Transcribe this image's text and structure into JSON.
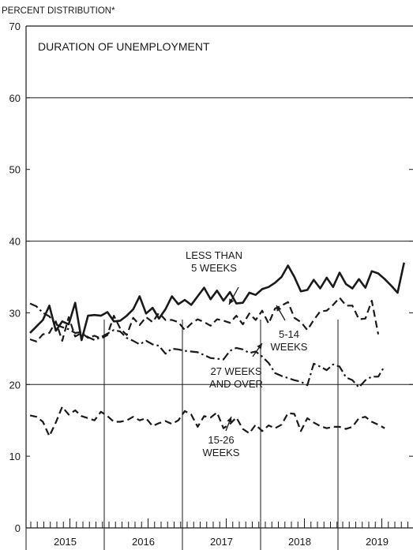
{
  "chart_data": {
    "type": "line",
    "title": "DURATION OF UNEMPLOYMENT",
    "ylabel": "PERCENT DISTRIBUTION*",
    "xlabel": "",
    "ylim": [
      0,
      70
    ],
    "yticks": [
      0,
      10,
      20,
      30,
      40,
      50,
      60,
      70
    ],
    "years": [
      "2015",
      "2016",
      "2017",
      "2018",
      "2019"
    ],
    "months_per_year": 12,
    "grid": true,
    "series": [
      {
        "name": "LESS THAN 5 WEEKS",
        "style": "solid",
        "values": [
          27.2,
          28.1,
          29.0,
          31.0,
          27.5,
          28.8,
          28.4,
          31.4,
          26.2,
          29.6,
          29.7,
          29.6,
          30.1,
          28.8,
          28.9,
          29.6,
          30.5,
          32.3,
          29.9,
          30.7,
          29.2,
          30.5,
          32.3,
          31.2,
          31.8,
          31.1,
          32.3,
          33.5,
          31.9,
          33.1,
          31.7,
          32.9,
          31.3,
          31.4,
          32.8,
          32.5,
          33.3,
          33.6,
          34.2,
          35.0,
          36.6,
          35.0,
          33.0,
          33.2,
          34.6,
          33.4,
          34.9,
          33.6,
          35.6,
          34.0,
          33.4,
          34.7,
          33.5,
          35.8,
          35.5,
          34.7,
          33.8,
          32.8,
          37.0
        ]
      },
      {
        "name": "5-14 WEEKS",
        "style": "dashed",
        "values": [
          26.3,
          26.0,
          27.0,
          27.2,
          28.8,
          26.1,
          29.4,
          26.7,
          27.2,
          26.5,
          26.8,
          26.4,
          26.9,
          29.6,
          27.8,
          26.9,
          29.3,
          28.3,
          29.4,
          28.7,
          30.0,
          29.0,
          29.0,
          28.7,
          27.6,
          28.5,
          29.1,
          28.7,
          28.2,
          29.1,
          28.9,
          28.6,
          29.6,
          28.4,
          29.9,
          29.0,
          30.3,
          28.5,
          30.6,
          31.0,
          31.5,
          29.3,
          28.7,
          27.6,
          29.0,
          30.2,
          30.3,
          31.1,
          32.1,
          31.0,
          31.0,
          29.1,
          29.2,
          31.7,
          27.0
        ]
      },
      {
        "name": "27 WEEKS AND OVER",
        "style": "dashdot",
        "values": [
          31.3,
          30.9,
          30.0,
          29.5,
          28.4,
          28.0,
          27.7,
          27.2,
          27.3,
          26.6,
          26.2,
          26.6,
          27.1,
          27.6,
          27.4,
          26.5,
          26.1,
          25.6,
          26.1,
          25.6,
          25.4,
          24.3,
          25.0,
          24.9,
          24.7,
          24.6,
          24.5,
          24.1,
          23.7,
          23.6,
          23.5,
          24.7,
          25.1,
          24.9,
          24.4,
          24.6,
          23.9,
          23.0,
          21.6,
          21.2,
          20.9,
          20.6,
          20.4,
          19.9,
          22.9,
          22.5,
          22.0,
          22.8,
          22.5,
          21.0,
          20.6,
          19.6,
          20.6,
          21.1,
          21.1,
          22.6
        ]
      },
      {
        "name": "15-26 WEEKS",
        "style": "dashed",
        "values": [
          15.7,
          15.5,
          14.8,
          12.8,
          14.7,
          16.9,
          15.8,
          16.4,
          15.6,
          15.3,
          15.0,
          16.2,
          15.6,
          14.8,
          14.8,
          15.0,
          15.5,
          15.0,
          15.3,
          14.2,
          14.6,
          14.9,
          14.5,
          15.0,
          16.3,
          15.8,
          14.1,
          15.6,
          15.4,
          16.1,
          13.9,
          14.5,
          15.4,
          13.8,
          13.2,
          14.4,
          13.5,
          14.3,
          13.9,
          14.4,
          16.0,
          15.9,
          13.5,
          15.3,
          14.7,
          14.2,
          13.9,
          14.1,
          14.1,
          13.8,
          14.1,
          15.3,
          15.5,
          14.8,
          14.4,
          13.9
        ]
      }
    ],
    "annotations": [
      {
        "lines": [
          "LESS THAN",
          "5 WEEKS"
        ]
      },
      {
        "lines": [
          "5-14",
          "WEEKS"
        ]
      },
      {
        "lines": [
          "27 WEEKS",
          "AND OVER"
        ]
      },
      {
        "lines": [
          "15-26",
          "WEEKS"
        ]
      }
    ]
  }
}
